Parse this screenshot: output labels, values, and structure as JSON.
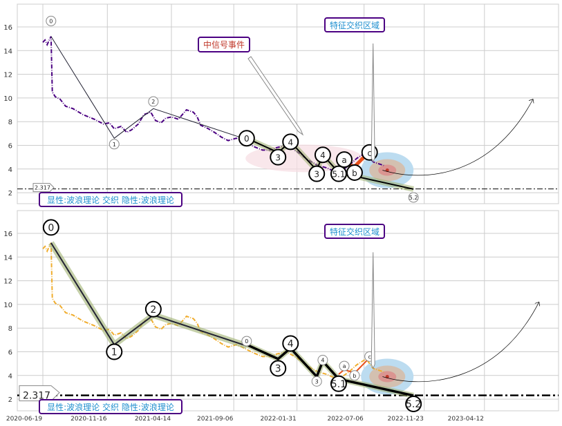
{
  "chart_data": {
    "type": "line",
    "x_unit": "days since 2020-06-19",
    "x_tick_labels": [
      "2020-06-19",
      "2020-11-16",
      "2021-04-14",
      "2021-09-06",
      "2022-01-31",
      "2022-07-06",
      "2022-11-23",
      "2023-04-12"
    ],
    "x_tick_days": [
      0,
      150,
      299,
      444,
      591,
      747,
      887,
      1027
    ],
    "y_ticks": [
      2,
      4,
      6,
      8,
      10,
      12,
      14,
      16
    ],
    "ylim": [
      1.1,
      17.9
    ],
    "grid": true,
    "price_series": [
      [
        0,
        14.7
      ],
      [
        5,
        14.9
      ],
      [
        10,
        14.5
      ],
      [
        15,
        14.9
      ],
      [
        19,
        15.2
      ],
      [
        22,
        10.5
      ],
      [
        29,
        10.1
      ],
      [
        40,
        9.9
      ],
      [
        53,
        9.3
      ],
      [
        70,
        9.1
      ],
      [
        93,
        8.6
      ],
      [
        120,
        8.2
      ],
      [
        141,
        7.8
      ],
      [
        155,
        7.9
      ],
      [
        166,
        7.4
      ],
      [
        182,
        7.6
      ],
      [
        195,
        7.1
      ],
      [
        206,
        7.3
      ],
      [
        222,
        7.8
      ],
      [
        235,
        8.6
      ],
      [
        251,
        8.8
      ],
      [
        262,
        8.1
      ],
      [
        275,
        7.9
      ],
      [
        286,
        8.3
      ],
      [
        300,
        8.4
      ],
      [
        315,
        8.2
      ],
      [
        334,
        9.0
      ],
      [
        350,
        8.8
      ],
      [
        359,
        8.4
      ],
      [
        367,
        7.7
      ],
      [
        385,
        7.4
      ],
      [
        399,
        7.1
      ],
      [
        415,
        6.7
      ],
      [
        431,
        6.4
      ],
      [
        450,
        6.6
      ],
      [
        463,
        6.4
      ],
      [
        490,
        5.9
      ],
      [
        511,
        5.6
      ],
      [
        530,
        5.6
      ],
      [
        543,
        5.8
      ],
      [
        567,
        6.0
      ],
      [
        590,
        5.5
      ],
      [
        608,
        5.0
      ],
      [
        625,
        4.6
      ],
      [
        640,
        4.3
      ],
      [
        660,
        4.1
      ],
      [
        672,
        3.9
      ],
      [
        688,
        3.7
      ],
      [
        700,
        4.0
      ],
      [
        712,
        4.3
      ],
      [
        730,
        4.9
      ],
      [
        752,
        5.4
      ],
      [
        768,
        4.6
      ],
      [
        793,
        4.3
      ]
    ],
    "support_level": 2.317,
    "support_label": "2.317",
    "panels": [
      {
        "price_color": "#4b0082",
        "main_waves": [
          [
            19,
            15.2
          ],
          [
            166,
            6.6
          ],
          [
            257,
            9.1
          ],
          [
            474,
            6.5
          ]
        ],
        "sub_waves": [
          [
            474,
            6.6
          ],
          [
            547,
            5.4
          ],
          [
            576,
            6.3
          ],
          [
            637,
            3.9
          ],
          [
            651,
            5.2
          ],
          [
            688,
            3.7
          ],
          [
            862,
            2.3
          ]
        ],
        "abc": [
          [
            688,
            4.1
          ],
          [
            701,
            4.5
          ],
          [
            725,
            4.2
          ],
          [
            760,
            5.5
          ]
        ],
        "labels": [
          {
            "text": "0",
            "d": 19,
            "v": 16.5,
            "big": false
          },
          {
            "text": "1",
            "d": 166,
            "v": 6.1,
            "big": false
          },
          {
            "text": "2",
            "d": 257,
            "v": 9.7,
            "big": false
          },
          {
            "text": "0",
            "d": 474,
            "v": 6.6,
            "big": true
          },
          {
            "text": "3",
            "d": 547,
            "v": 5.0,
            "big": true
          },
          {
            "text": "4",
            "d": 576,
            "v": 6.3,
            "big": true
          },
          {
            "text": "3",
            "d": 637,
            "v": 3.6,
            "big": true
          },
          {
            "text": "4",
            "d": 651,
            "v": 5.2,
            "big": true
          },
          {
            "text": "5.1",
            "d": 688,
            "v": 3.6,
            "big": true
          },
          {
            "text": "a",
            "d": 701,
            "v": 4.8,
            "big": true
          },
          {
            "text": "b",
            "d": 725,
            "v": 3.7,
            "big": true
          },
          {
            "text": "c",
            "d": 760,
            "v": 5.4,
            "big": true
          },
          {
            "text": "5.2",
            "d": 862,
            "v": 1.6,
            "big": false
          }
        ]
      },
      {
        "price_color": "#f0ad2e",
        "main_waves": [
          [
            19,
            15.2
          ],
          [
            166,
            6.6
          ],
          [
            257,
            9.1
          ],
          [
            474,
            6.5
          ]
        ],
        "sub_waves": [
          [
            474,
            6.6
          ],
          [
            547,
            5.4
          ],
          [
            576,
            6.3
          ],
          [
            637,
            3.9
          ],
          [
            651,
            5.2
          ],
          [
            688,
            3.7
          ],
          [
            862,
            2.3
          ]
        ],
        "abc": [
          [
            688,
            4.1
          ],
          [
            701,
            4.5
          ],
          [
            725,
            4.2
          ],
          [
            760,
            5.5
          ]
        ],
        "labels": [
          {
            "text": "0",
            "d": 19,
            "v": 16.5,
            "big": true
          },
          {
            "text": "1",
            "d": 166,
            "v": 6.0,
            "big": true
          },
          {
            "text": "2",
            "d": 257,
            "v": 9.6,
            "big": true
          },
          {
            "text": "0",
            "d": 474,
            "v": 6.9,
            "big": false
          },
          {
            "text": "3",
            "d": 547,
            "v": 4.6,
            "big": true
          },
          {
            "text": "4",
            "d": 576,
            "v": 6.7,
            "big": true
          },
          {
            "text": "4",
            "d": 651,
            "v": 5.3,
            "big": false
          },
          {
            "text": "3",
            "d": 637,
            "v": 3.5,
            "big": false
          },
          {
            "text": "5.1",
            "d": 688,
            "v": 3.3,
            "big": true
          },
          {
            "text": "a",
            "d": 701,
            "v": 4.8,
            "big": false
          },
          {
            "text": "b",
            "d": 725,
            "v": 4.0,
            "big": false
          },
          {
            "text": "c",
            "d": 760,
            "v": 5.6,
            "big": false
          },
          {
            "text": "5.2",
            "d": 862,
            "v": 1.6,
            "big": true
          }
        ]
      }
    ],
    "annotations": {
      "signal_event": "中信号事件",
      "feature_zone": "特征交织区域",
      "legend": "显性:波浪理论 交织 隐性:波浪理论"
    },
    "colors": {
      "accent_orange": "#e8501a",
      "box_border": "#4b0082",
      "signal_text": "#c0392b",
      "zone_text": "#1f8fcf"
    }
  }
}
